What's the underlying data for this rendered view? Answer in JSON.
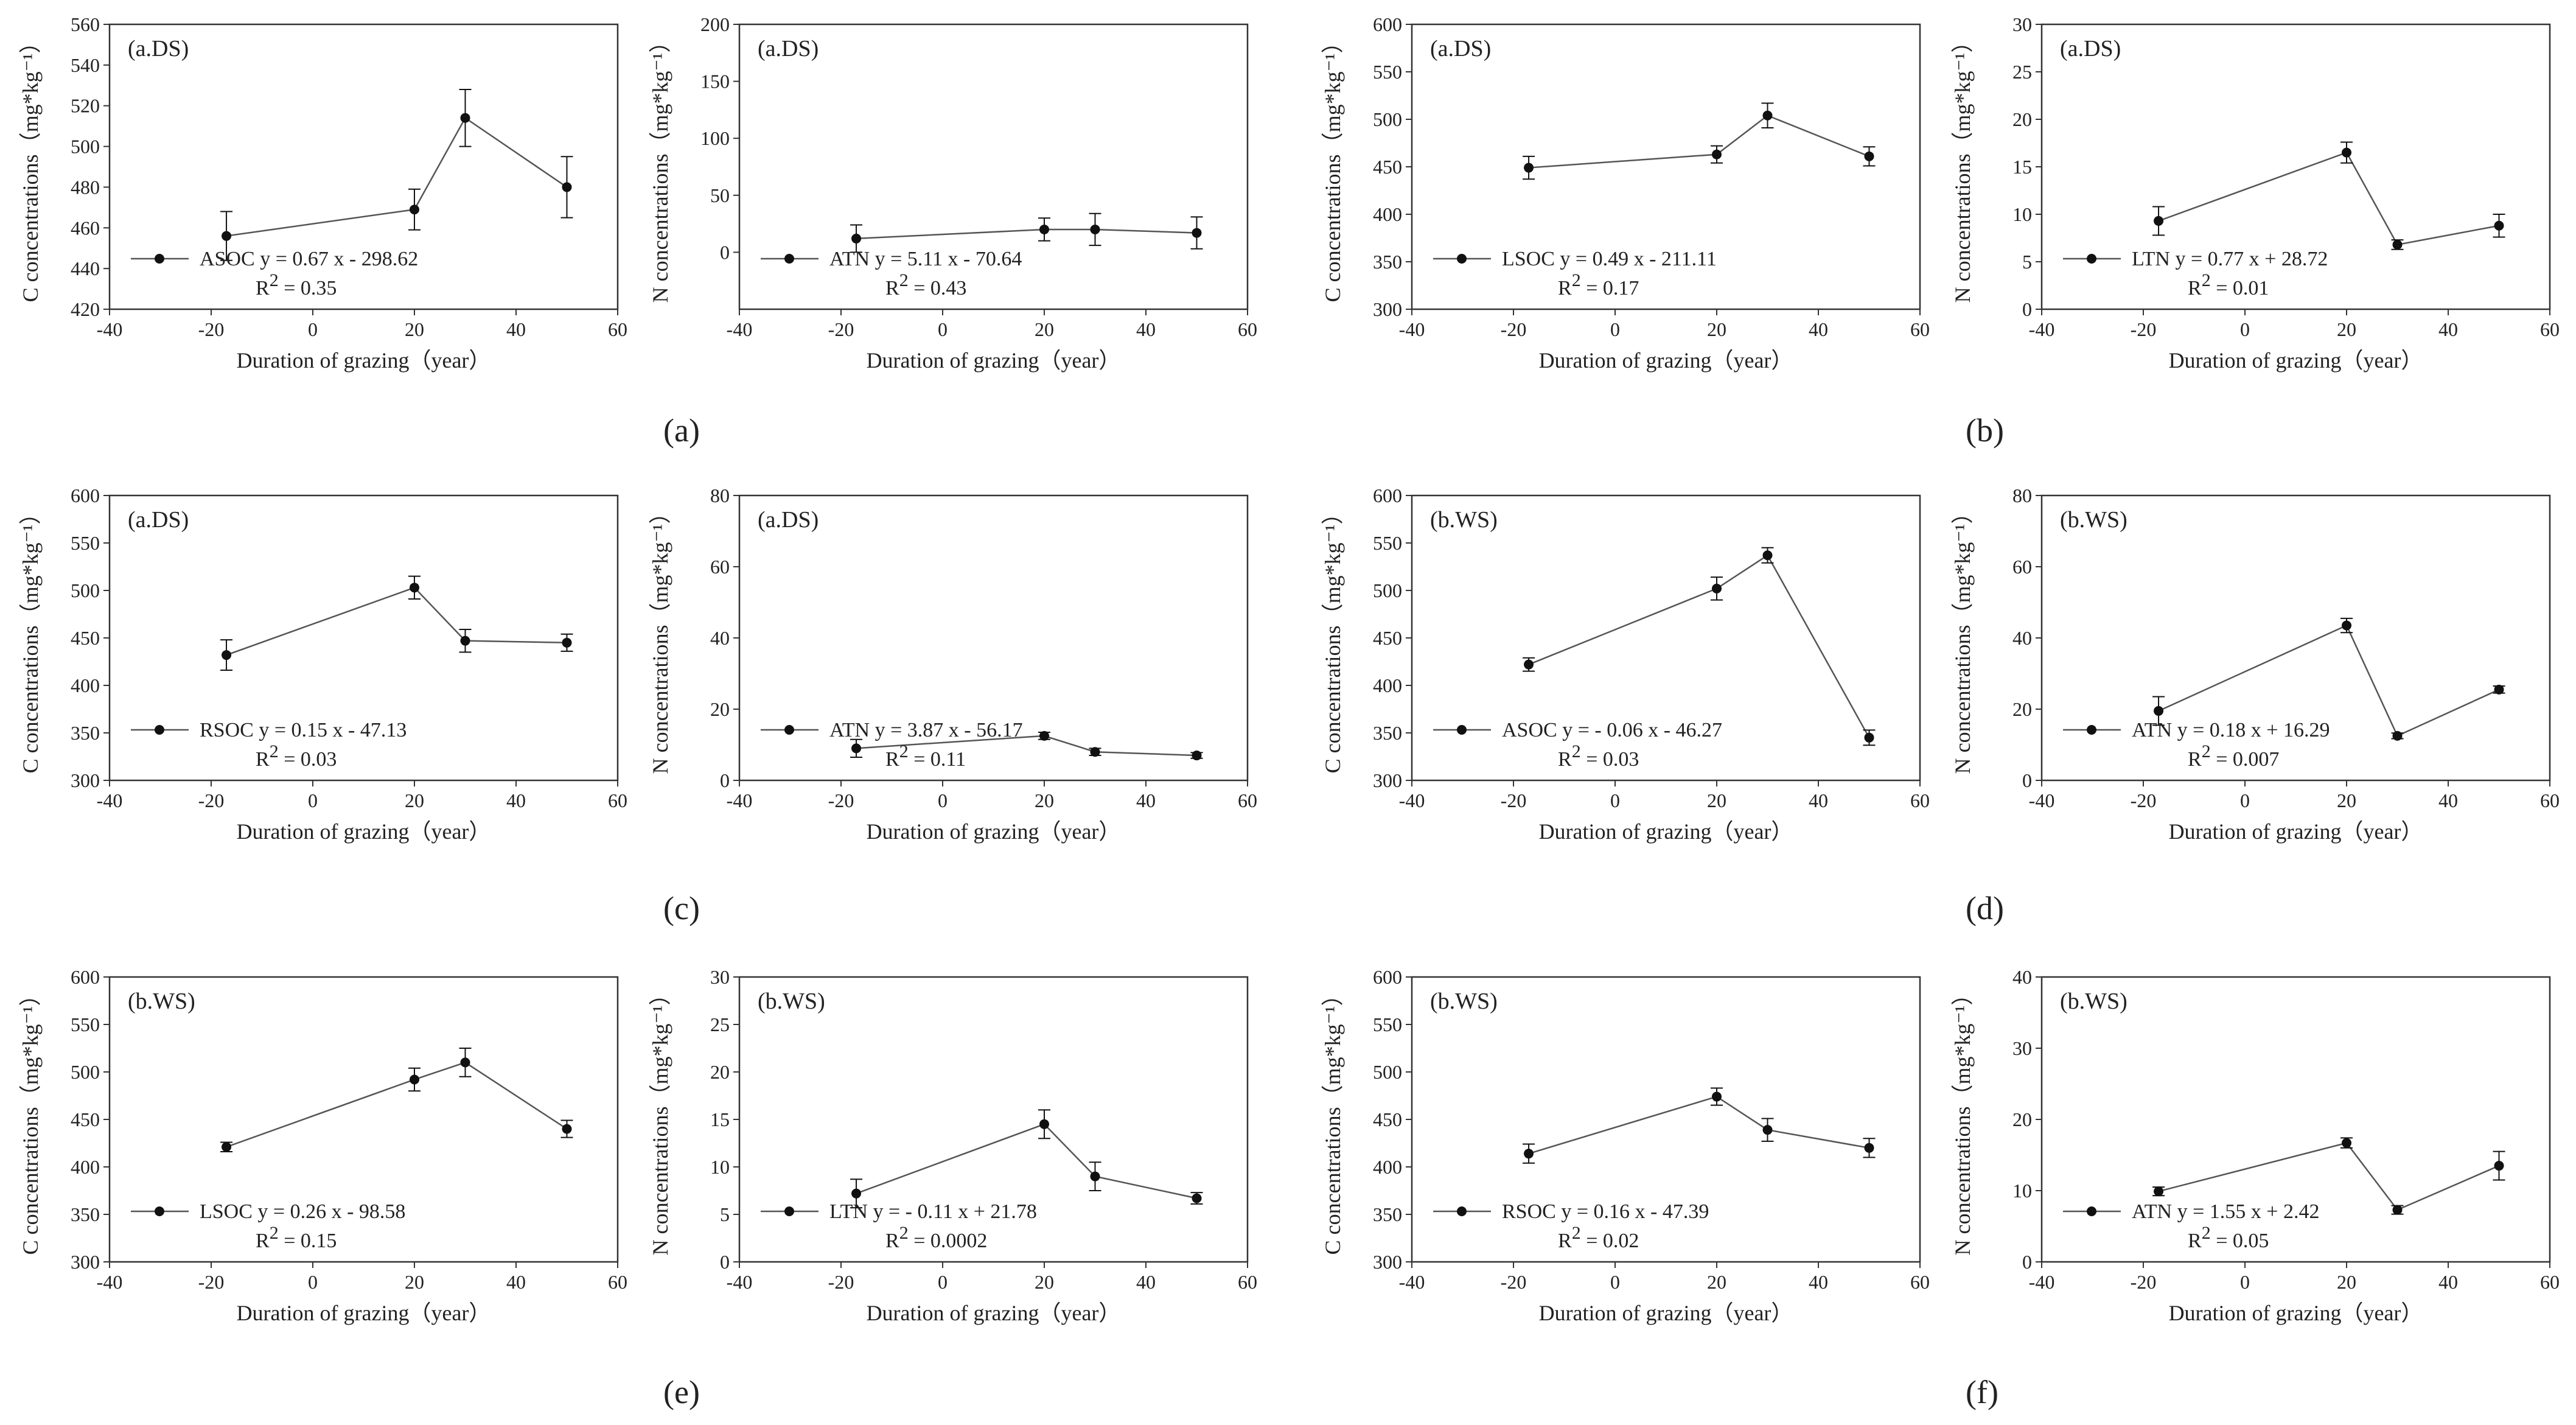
{
  "chart_data": [
    {
      "type": "line",
      "panel": "a",
      "title": "(a.DS)",
      "ylabel": "C concentrations（mg*kg⁻¹）",
      "xlabel": "Duration of grazing（year）",
      "xlim": [
        -40,
        60
      ],
      "xticks": [
        -40,
        -20,
        0,
        20,
        40,
        60
      ],
      "ylim": [
        420,
        560
      ],
      "yticks": [
        420,
        440,
        460,
        480,
        500,
        520,
        540,
        560
      ],
      "series": [
        {
          "name": "ASOC",
          "x": [
            -17,
            20,
            30,
            50
          ],
          "y": [
            456,
            469,
            514,
            480
          ],
          "err": [
            12,
            10,
            14,
            15
          ]
        }
      ],
      "legend": {
        "name": "ASOC",
        "equation": "y = 0.67 x - 298.62",
        "r2": "= 0.35"
      }
    },
    {
      "type": "line",
      "panel": "a",
      "title": "(a.DS)",
      "ylabel": "N concentrations（mg*kg⁻¹）",
      "xlabel": "Duration of grazing（year）",
      "xlim": [
        -40,
        60
      ],
      "xticks": [
        -40,
        -20,
        0,
        20,
        40,
        60
      ],
      "ylim": [
        -50,
        200
      ],
      "yticks": [
        0,
        50,
        100,
        150,
        200
      ],
      "series": [
        {
          "name": "ATN",
          "x": [
            -17,
            20,
            30,
            50
          ],
          "y": [
            12,
            20,
            20,
            17
          ],
          "err": [
            12,
            10,
            14,
            14
          ]
        }
      ],
      "legend": {
        "name": "ATN",
        "equation": "y = 5.11 x - 70.64",
        "r2": "= 0.43"
      }
    },
    {
      "type": "line",
      "panel": "b",
      "title": "(a.DS)",
      "ylabel": "C concentrations（mg*kg⁻¹）",
      "xlabel": "Duration of grazing（year）",
      "xlim": [
        -40,
        60
      ],
      "xticks": [
        -40,
        -20,
        0,
        20,
        40,
        60
      ],
      "ylim": [
        300,
        600
      ],
      "yticks": [
        300,
        350,
        400,
        450,
        500,
        550,
        600
      ],
      "series": [
        {
          "name": "LSOC",
          "x": [
            -17,
            20,
            30,
            50
          ],
          "y": [
            449,
            463,
            504,
            461
          ],
          "err": [
            12,
            9,
            13,
            10
          ]
        }
      ],
      "legend": {
        "name": "LSOC",
        "equation": "y = 0.49 x - 211.11",
        "r2": "= 0.17"
      }
    },
    {
      "type": "line",
      "panel": "b",
      "title": "(a.DS)",
      "ylabel": "N concentrations（mg*kg⁻¹）",
      "xlabel": "Duration of grazing（year）",
      "xlim": [
        -40,
        60
      ],
      "xticks": [
        -40,
        -20,
        0,
        20,
        40,
        60
      ],
      "ylim": [
        0,
        30
      ],
      "yticks": [
        0,
        5,
        10,
        15,
        20,
        25,
        30
      ],
      "series": [
        {
          "name": "LTN",
          "x": [
            -17,
            20,
            30,
            50
          ],
          "y": [
            9.3,
            16.5,
            6.8,
            8.8
          ],
          "err": [
            1.5,
            1.1,
            0.5,
            1.2
          ]
        }
      ],
      "legend": {
        "name": "LTN",
        "equation": "y = 0.77 x + 28.72",
        "r2": "= 0.01"
      }
    },
    {
      "type": "line",
      "panel": "c",
      "title": "(a.DS)",
      "ylabel": "C concentrations（mg*kg⁻¹）",
      "xlabel": "Duration of grazing（year）",
      "xlim": [
        -40,
        60
      ],
      "xticks": [
        -40,
        -20,
        0,
        20,
        40,
        60
      ],
      "ylim": [
        300,
        600
      ],
      "yticks": [
        300,
        350,
        400,
        450,
        500,
        550,
        600
      ],
      "series": [
        {
          "name": "RSOC",
          "x": [
            -17,
            20,
            30,
            50
          ],
          "y": [
            432,
            503,
            447,
            445
          ],
          "err": [
            16,
            12,
            12,
            9
          ]
        }
      ],
      "legend": {
        "name": "RSOC",
        "equation": "y = 0.15 x - 47.13",
        "r2": "= 0.03"
      }
    },
    {
      "type": "line",
      "panel": "c",
      "title": "(a.DS)",
      "ylabel": "N concentrations（mg*kg⁻¹）",
      "xlabel": "Duration of grazing（year）",
      "xlim": [
        -40,
        60
      ],
      "xticks": [
        -40,
        -20,
        0,
        20,
        40,
        60
      ],
      "ylim": [
        0,
        80
      ],
      "yticks": [
        0,
        20,
        40,
        60,
        80
      ],
      "series": [
        {
          "name": "ATN",
          "x": [
            -17,
            20,
            30,
            50
          ],
          "y": [
            9,
            12.5,
            8,
            7
          ],
          "err": [
            2.5,
            1,
            1,
            0.8
          ]
        }
      ],
      "legend": {
        "name": "ATN",
        "equation": "y = 3.87 x - 56.17",
        "r2": "= 0.11"
      }
    },
    {
      "type": "line",
      "panel": "d",
      "title": "(b.WS)",
      "ylabel": "C concentrations（mg*kg⁻¹）",
      "xlabel": "Duration of grazing（year）",
      "xlim": [
        -40,
        60
      ],
      "xticks": [
        -40,
        -20,
        0,
        20,
        40,
        60
      ],
      "ylim": [
        300,
        600
      ],
      "yticks": [
        300,
        350,
        400,
        450,
        500,
        550,
        600
      ],
      "series": [
        {
          "name": "ASOC",
          "x": [
            -17,
            20,
            30,
            50
          ],
          "y": [
            422,
            502,
            537,
            345
          ],
          "err": [
            7,
            12,
            8,
            8
          ]
        }
      ],
      "legend": {
        "name": "ASOC",
        "equation": "y = - 0.06 x - 46.27",
        "r2": "= 0.03"
      }
    },
    {
      "type": "line",
      "panel": "d",
      "title": "(b.WS)",
      "ylabel": "N concentrations（mg*kg⁻¹）",
      "xlabel": "Duration of grazing（year）",
      "xlim": [
        -40,
        60
      ],
      "xticks": [
        -40,
        -20,
        0,
        20,
        40,
        60
      ],
      "ylim": [
        0,
        80
      ],
      "yticks": [
        0,
        20,
        40,
        60,
        80
      ],
      "series": [
        {
          "name": "ATN",
          "x": [
            -17,
            20,
            30,
            50
          ],
          "y": [
            19.5,
            43.5,
            12.5,
            25.5
          ],
          "err": [
            4,
            2,
            0.8,
            1
          ]
        }
      ],
      "legend": {
        "name": "ATN",
        "equation": "y = 0.18 x + 16.29",
        "r2": "= 0.007"
      }
    },
    {
      "type": "line",
      "panel": "e",
      "title": "(b.WS)",
      "ylabel": "C concentrations（mg*kg⁻¹）",
      "xlabel": "Duration of grazing（year）",
      "xlim": [
        -40,
        60
      ],
      "xticks": [
        -40,
        -20,
        0,
        20,
        40,
        60
      ],
      "ylim": [
        300,
        600
      ],
      "yticks": [
        300,
        350,
        400,
        450,
        500,
        550,
        600
      ],
      "series": [
        {
          "name": "LSOC",
          "x": [
            -17,
            20,
            30,
            50
          ],
          "y": [
            421,
            492,
            510,
            440
          ],
          "err": [
            5,
            12,
            15,
            9
          ]
        }
      ],
      "legend": {
        "name": "LSOC",
        "equation": "y = 0.26 x - 98.58",
        "r2": "= 0.15"
      }
    },
    {
      "type": "line",
      "panel": "e",
      "title": "(b.WS)",
      "ylabel": "N concentrations（mg*kg⁻¹）",
      "xlabel": "Duration of grazing（year）",
      "xlim": [
        -40,
        60
      ],
      "xticks": [
        -40,
        -20,
        0,
        20,
        40,
        60
      ],
      "ylim": [
        0,
        30
      ],
      "yticks": [
        0,
        5,
        10,
        15,
        20,
        25,
        30
      ],
      "series": [
        {
          "name": "LTN",
          "x": [
            -17,
            20,
            30,
            50
          ],
          "y": [
            7.2,
            14.5,
            9,
            6.7
          ],
          "err": [
            1.5,
            1.5,
            1.5,
            0.6
          ]
        }
      ],
      "legend": {
        "name": "LTN",
        "equation": "y = - 0.11 x + 21.78",
        "r2": "= 0.0002"
      }
    },
    {
      "type": "line",
      "panel": "f",
      "title": "(b.WS)",
      "ylabel": "C concentrations（mg*kg⁻¹）",
      "xlabel": "Duration of grazing（year）",
      "xlim": [
        -40,
        60
      ],
      "xticks": [
        -40,
        -20,
        0,
        20,
        40,
        60
      ],
      "ylim": [
        300,
        600
      ],
      "yticks": [
        300,
        350,
        400,
        450,
        500,
        550,
        600
      ],
      "series": [
        {
          "name": "RSOC",
          "x": [
            -17,
            20,
            30,
            50
          ],
          "y": [
            414,
            474,
            439,
            420
          ],
          "err": [
            10,
            9,
            12,
            10
          ]
        }
      ],
      "legend": {
        "name": "RSOC",
        "equation": "y = 0.16 x - 47.39",
        "r2": "= 0.02"
      }
    },
    {
      "type": "line",
      "panel": "f",
      "title": "(b.WS)",
      "ylabel": "N concentrations（mg*kg⁻¹）",
      "xlabel": "Duration of grazing（year）",
      "xlim": [
        -40,
        60
      ],
      "xticks": [
        -40,
        -20,
        0,
        20,
        40,
        60
      ],
      "ylim": [
        0,
        40
      ],
      "yticks": [
        0,
        10,
        20,
        30,
        40
      ],
      "series": [
        {
          "name": "ATN",
          "x": [
            -17,
            20,
            30,
            50
          ],
          "y": [
            9.9,
            16.7,
            7.3,
            13.5
          ],
          "err": [
            0.6,
            0.7,
            0.6,
            2
          ]
        }
      ],
      "legend": {
        "name": "ATN",
        "equation": "y = 1.55 x + 2.42",
        "r2": "= 0.05"
      }
    }
  ],
  "subfigure_labels": [
    "(a)",
    "(b)",
    "(c)",
    "(d)",
    "(e)",
    "(f)"
  ],
  "colors": {
    "line": "#555555",
    "marker": "#111111",
    "axis": "#333333"
  }
}
